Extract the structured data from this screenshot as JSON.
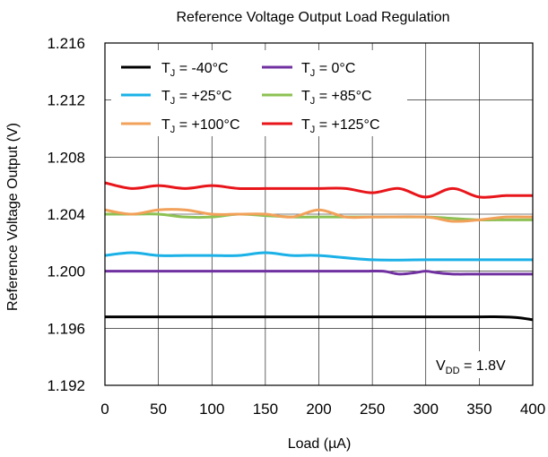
{
  "chart_data": {
    "type": "line",
    "title": "Reference Voltage Output Load Regulation",
    "xlabel": "Load (µA)",
    "ylabel": "Reference Voltage Output (V)",
    "xlim": [
      0,
      400
    ],
    "ylim": [
      1.192,
      1.216
    ],
    "x_ticks": [
      "0",
      "50",
      "100",
      "150",
      "200",
      "250",
      "300",
      "350",
      "400"
    ],
    "y_ticks": [
      "1.192",
      "1.196",
      "1.200",
      "1.204",
      "1.208",
      "1.212",
      "1.216"
    ],
    "grid": true,
    "legend_position": "top-left",
    "annotation": {
      "main": "V",
      "sub": "DD",
      "rest": " = 1.8V"
    },
    "series": [
      {
        "name_main": "T",
        "name_sub": "J",
        "name_rest": " = -40°C",
        "color": "#000000",
        "x": [
          0,
          50,
          100,
          150,
          200,
          250,
          300,
          350,
          370,
          385,
          400
        ],
        "y": [
          1.1968,
          1.1968,
          1.1968,
          1.1968,
          1.1968,
          1.1968,
          1.1968,
          1.1968,
          1.1968,
          1.19675,
          1.1966
        ]
      },
      {
        "name_main": "T",
        "name_sub": "J",
        "name_rest": " = 0°C",
        "color": "#7030a0",
        "x": [
          0,
          50,
          100,
          150,
          200,
          240,
          260,
          275,
          290,
          300,
          310,
          325,
          350,
          400
        ],
        "y": [
          1.2,
          1.2,
          1.2,
          1.2,
          1.2,
          1.2,
          1.2,
          1.1998,
          1.1999,
          1.2,
          1.1999,
          1.1998,
          1.1998,
          1.1998
        ]
      },
      {
        "name_main": "T",
        "name_sub": "J",
        "name_rest": " = +25°C",
        "color": "#1bb1e7",
        "x": [
          0,
          25,
          50,
          75,
          100,
          125,
          150,
          175,
          200,
          250,
          300,
          350,
          400
        ],
        "y": [
          1.2011,
          1.2013,
          1.2011,
          1.2011,
          1.2011,
          1.2011,
          1.2013,
          1.2011,
          1.2011,
          1.2008,
          1.2008,
          1.2008,
          1.2008
        ]
      },
      {
        "name_main": "T",
        "name_sub": "J",
        "name_rest": " = +85°C",
        "color": "#8dc153",
        "x": [
          0,
          25,
          50,
          75,
          100,
          125,
          150,
          175,
          200,
          250,
          300,
          325,
          350,
          375,
          400
        ],
        "y": [
          1.204,
          1.204,
          1.204,
          1.2038,
          1.2038,
          1.204,
          1.2039,
          1.2038,
          1.2038,
          1.2038,
          1.2038,
          1.2037,
          1.2036,
          1.2036,
          1.2036
        ]
      },
      {
        "name_main": "T",
        "name_sub": "J",
        "name_rest": " = +100°C",
        "color": "#f2a15a",
        "x": [
          0,
          25,
          50,
          75,
          100,
          125,
          150,
          175,
          200,
          225,
          250,
          300,
          325,
          350,
          375,
          400
        ],
        "y": [
          1.2043,
          1.204,
          1.2043,
          1.2043,
          1.204,
          1.204,
          1.204,
          1.2038,
          1.2043,
          1.2038,
          1.2038,
          1.2038,
          1.2035,
          1.2036,
          1.2038,
          1.2038
        ]
      },
      {
        "name_main": "T",
        "name_sub": "J",
        "name_rest": " = +125°C",
        "color": "#e8161b",
        "x": [
          0,
          25,
          50,
          75,
          100,
          125,
          150,
          175,
          200,
          225,
          250,
          275,
          300,
          325,
          350,
          375,
          400
        ],
        "y": [
          1.2062,
          1.2058,
          1.206,
          1.2058,
          1.206,
          1.2058,
          1.2058,
          1.2058,
          1.2058,
          1.2058,
          1.2055,
          1.2058,
          1.2052,
          1.2058,
          1.2052,
          1.2053,
          1.2053
        ]
      }
    ]
  }
}
